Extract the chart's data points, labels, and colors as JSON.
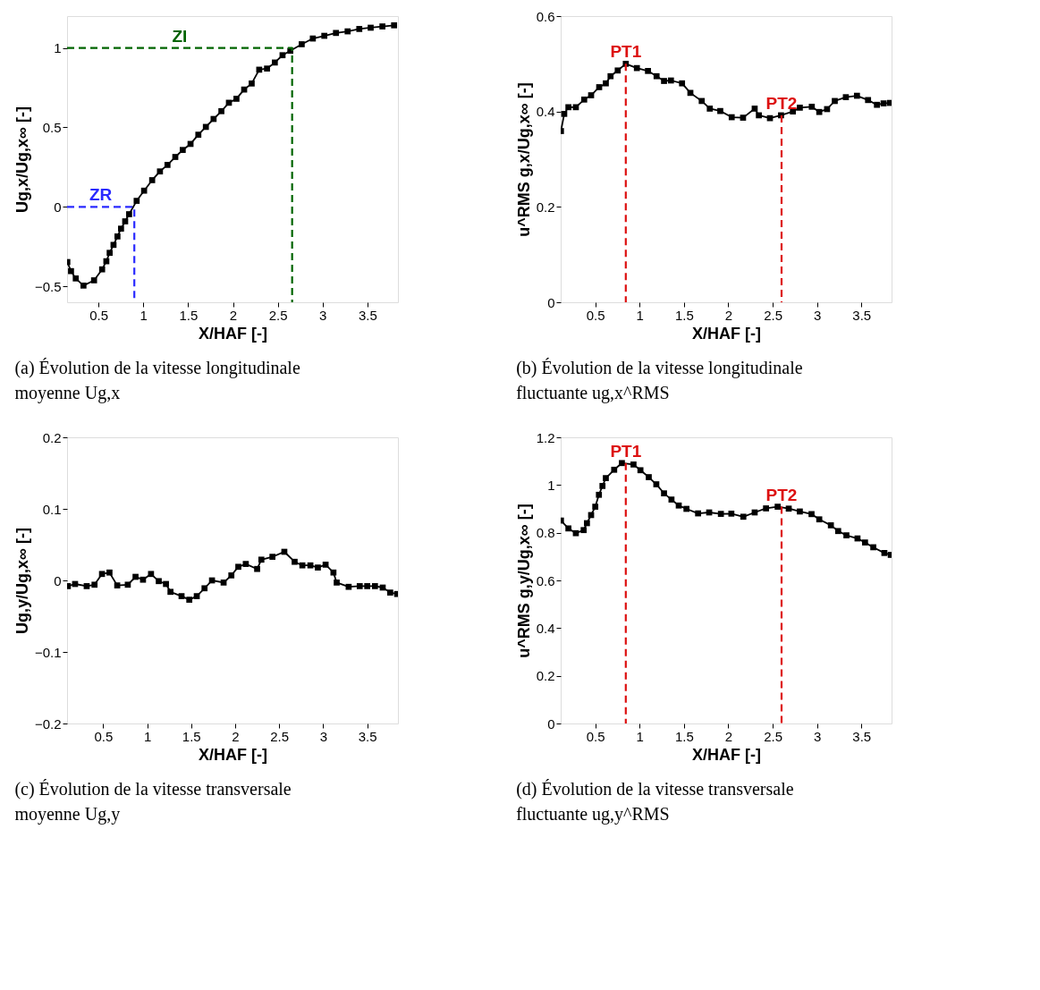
{
  "chart_data": [
    {
      "type": "line",
      "title": "(a) Évolution de la vitesse longitudinale moyenne Ug,x",
      "xlabel": "X/HAF [-]",
      "ylabel": "Ug,x/Ug,x∞ [-]",
      "xlim": [
        0.15,
        3.84
      ],
      "ylim": [
        -0.6,
        1.2
      ],
      "xticks": [
        0.5,
        1,
        1.5,
        2,
        2.5,
        3,
        3.5
      ],
      "yticks": [
        -0.5,
        0,
        0.5,
        1
      ],
      "grid": false,
      "series": [
        {
          "color": "#000000",
          "marker": "square",
          "x": [
            0.153,
            0.194,
            0.247,
            0.333,
            0.451,
            0.541,
            0.588,
            0.625,
            0.668,
            0.712,
            0.752,
            0.798,
            0.842,
            0.926,
            1.009,
            1.099,
            1.186,
            1.27,
            1.357,
            1.44,
            1.527,
            1.614,
            1.698,
            1.784,
            1.871,
            1.955,
            2.039,
            2.125,
            2.209,
            2.293,
            2.38,
            2.467,
            2.553,
            2.64,
            2.767,
            2.891,
            3.019,
            3.149,
            3.279,
            3.409,
            3.536,
            3.667,
            3.797
          ],
          "values": [
            -0.347,
            -0.404,
            -0.45,
            -0.495,
            -0.462,
            -0.393,
            -0.342,
            -0.289,
            -0.239,
            -0.186,
            -0.137,
            -0.091,
            -0.046,
            0.038,
            0.102,
            0.168,
            0.223,
            0.264,
            0.314,
            0.358,
            0.396,
            0.454,
            0.503,
            0.553,
            0.602,
            0.655,
            0.68,
            0.738,
            0.776,
            0.863,
            0.87,
            0.908,
            0.954,
            0.982,
            1.023,
            1.059,
            1.076,
            1.094,
            1.104,
            1.119,
            1.127,
            1.135,
            1.142
          ]
        },
        {
          "name": "ZR",
          "color": "#2a2aff",
          "line_style": "dashed",
          "marker": "none",
          "x": [
            0.15,
            0.9,
            0.9
          ],
          "values": [
            0,
            0,
            -0.6
          ]
        },
        {
          "name": "ZI",
          "color": "#006400",
          "line_style": "dashed",
          "marker": "none",
          "x": [
            0.15,
            2.66,
            2.66
          ],
          "values": [
            1,
            1,
            -0.6
          ]
        }
      ]
    },
    {
      "type": "line",
      "title": "(b) Évolution de la vitesse longitudinale fluctuante ug,x^RMS",
      "xlabel": "X/HAF [-]",
      "ylabel": "u^RMS g,x/Ug,x∞ [-]",
      "xlim": [
        0.11,
        3.84
      ],
      "ylim": [
        0,
        0.6
      ],
      "xticks": [
        0.5,
        1,
        1.5,
        2,
        2.5,
        3,
        3.5
      ],
      "yticks": [
        0,
        0.2,
        0.4,
        0.6
      ],
      "grid": false,
      "series": [
        {
          "color": "#000000",
          "marker": "square",
          "x": [
            0.113,
            0.15,
            0.197,
            0.281,
            0.375,
            0.453,
            0.544,
            0.619,
            0.672,
            0.753,
            0.844,
            0.969,
            1.094,
            1.191,
            1.275,
            1.353,
            1.478,
            1.572,
            1.7,
            1.791,
            1.909,
            2.038,
            2.166,
            2.297,
            2.344,
            2.469,
            2.594,
            2.728,
            2.806,
            2.941,
            3.025,
            3.113,
            3.2,
            3.325,
            3.45,
            3.575,
            3.675,
            3.75,
            3.822
          ],
          "values": [
            0.359,
            0.395,
            0.409,
            0.409,
            0.425,
            0.434,
            0.451,
            0.459,
            0.474,
            0.486,
            0.5,
            0.491,
            0.485,
            0.474,
            0.464,
            0.465,
            0.459,
            0.439,
            0.422,
            0.406,
            0.401,
            0.388,
            0.387,
            0.406,
            0.392,
            0.386,
            0.392,
            0.4,
            0.408,
            0.41,
            0.399,
            0.405,
            0.422,
            0.43,
            0.433,
            0.424,
            0.414,
            0.417,
            0.418
          ]
        },
        {
          "name": "PT1",
          "color": "#dd1111",
          "line_style": "dashed",
          "marker": "none",
          "x": [
            0.844,
            0.844
          ],
          "values": [
            0.5,
            0
          ]
        },
        {
          "name": "PT2",
          "color": "#dd1111",
          "line_style": "dashed",
          "marker": "none",
          "x": [
            2.6,
            2.6
          ],
          "values": [
            0.392,
            0
          ]
        }
      ]
    },
    {
      "type": "line",
      "title": "(c) Évolution de la vitesse transversale moyenne Ug,y",
      "xlabel": "X/HAF [-]",
      "ylabel": "Ug,y/Ug,x∞ [-]",
      "xlim": [
        0.09,
        3.85
      ],
      "ylim": [
        -0.2,
        0.2
      ],
      "xticks": [
        0.5,
        1,
        1.5,
        2,
        2.5,
        3,
        3.5
      ],
      "yticks": [
        -0.2,
        -0.1,
        0,
        0.1,
        0.2
      ],
      "grid": false,
      "series": [
        {
          "color": "#000000",
          "marker": "square",
          "x": [
            0.099,
            0.181,
            0.313,
            0.402,
            0.487,
            0.572,
            0.66,
            0.78,
            0.868,
            0.953,
            1.044,
            1.132,
            1.214,
            1.265,
            1.391,
            1.479,
            1.564,
            1.652,
            1.737,
            1.869,
            1.957,
            2.036,
            2.121,
            2.25,
            2.298,
            2.424,
            2.559,
            2.676,
            2.764,
            2.855,
            2.94,
            3.028,
            3.117,
            3.154,
            3.29,
            3.416,
            3.501,
            3.589,
            3.677,
            3.762,
            3.841
          ],
          "values": [
            -0.008,
            -0.005,
            -0.008,
            -0.006,
            0.009,
            0.011,
            -0.007,
            -0.006,
            0.005,
            0.001,
            0.009,
            -0.001,
            -0.005,
            -0.016,
            -0.022,
            -0.027,
            -0.022,
            -0.011,
            0,
            -0.003,
            0.007,
            0.019,
            0.023,
            0.016,
            0.029,
            0.033,
            0.04,
            0.026,
            0.021,
            0.021,
            0.018,
            0.022,
            0.011,
            -0.003,
            -0.009,
            -0.008,
            -0.008,
            -0.008,
            -0.01,
            -0.017,
            -0.019
          ]
        }
      ]
    },
    {
      "type": "line",
      "title": "(d) Évolution de la vitesse transversale fluctuante ug,y^RMS",
      "xlabel": "X/HAF [-]",
      "ylabel": "u^RMS g,y/Ug,x∞ [-]",
      "xlim": [
        0.11,
        3.84
      ],
      "ylim": [
        0,
        1.2
      ],
      "xticks": [
        0.5,
        1,
        1.5,
        2,
        2.5,
        3,
        3.5
      ],
      "yticks": [
        0,
        0.2,
        0.4,
        0.6,
        0.8,
        1,
        1.2
      ],
      "grid": false,
      "series": [
        {
          "color": "#000000",
          "marker": "square",
          "x": [
            0.113,
            0.197,
            0.281,
            0.369,
            0.406,
            0.453,
            0.5,
            0.541,
            0.581,
            0.619,
            0.713,
            0.8,
            0.931,
            1.009,
            1.103,
            1.188,
            1.275,
            1.359,
            1.441,
            1.528,
            1.659,
            1.784,
            1.916,
            2.034,
            2.169,
            2.297,
            2.425,
            2.556,
            2.681,
            2.806,
            2.938,
            3.025,
            3.156,
            3.238,
            3.331,
            3.456,
            3.541,
            3.634,
            3.759,
            3.831
          ],
          "values": [
            0.851,
            0.818,
            0.798,
            0.811,
            0.84,
            0.874,
            0.909,
            0.959,
            0.996,
            1.029,
            1.064,
            1.092,
            1.086,
            1.062,
            1.033,
            1.003,
            0.965,
            0.939,
            0.914,
            0.9,
            0.881,
            0.885,
            0.879,
            0.88,
            0.867,
            0.885,
            0.902,
            0.909,
            0.901,
            0.889,
            0.878,
            0.856,
            0.831,
            0.807,
            0.789,
            0.776,
            0.759,
            0.739,
            0.715,
            0.707
          ]
        },
        {
          "name": "PT1",
          "color": "#dd1111",
          "line_style": "dashed",
          "marker": "none",
          "x": [
            0.844,
            0.844
          ],
          "values": [
            1.092,
            0
          ]
        },
        {
          "name": "PT2",
          "color": "#dd1111",
          "line_style": "dashed",
          "marker": "none",
          "x": [
            2.6,
            2.6
          ],
          "values": [
            0.909,
            0
          ]
        }
      ]
    }
  ]
}
